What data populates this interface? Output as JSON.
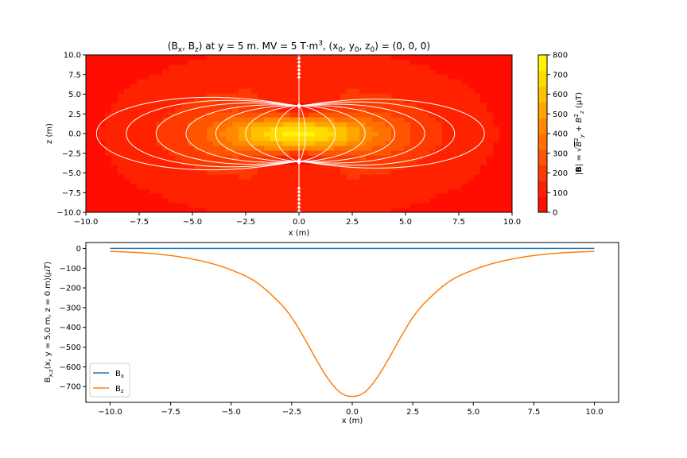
{
  "chart_data": [
    {
      "type": "heatmap",
      "title": "(Bₓ, Bᵤ) at y = 5 m.  MV = 5 T·m³, (x₀, y₀, z₀) = (0, 0, 0)",
      "title_parts": {
        "a": "(B",
        "b": "x",
        "c": ", B",
        "d": "z",
        "e": ") at y = 5 m.  MV = 5 T·m",
        "f": "3",
        "g": ", (x",
        "h": "0",
        "i": ", y",
        "j": "0",
        "k": ", z",
        "l": "0",
        "m": ") = (0, 0, 0)"
      },
      "xlabel": "x (m)",
      "ylabel": "z (m)",
      "xlim": [
        -10,
        10
      ],
      "ylim": [
        -10,
        10
      ],
      "xticks": [
        "−10.0",
        "−7.5",
        "−5.0",
        "−2.5",
        "0.0",
        "2.5",
        "5.0",
        "7.5",
        "10.0"
      ],
      "yticks": [
        "−10.0",
        "−7.5",
        "−5.0",
        "−2.5",
        "0.0",
        "2.5",
        "5.0",
        "7.5",
        "10.0"
      ],
      "colorbar": {
        "label": "|B| = √(Bᵧ² + Bᵤ²)  (μT)",
        "label_parts": {
          "a": "|",
          "b": "B",
          "c": "| = ",
          "d": "B",
          "e": "2",
          "f": "y",
          "g": " + ",
          "h": "B",
          "i": "2",
          "j": "z",
          "k": "  (μT)"
        },
        "ticks": [
          "0",
          "100",
          "200",
          "300",
          "400",
          "500",
          "600",
          "700",
          "800"
        ],
        "range": [
          0,
          800
        ],
        "colors": [
          "#ff0d00",
          "#ff2200",
          "#ff3a00",
          "#ff5500",
          "#ff7000",
          "#ff8a00",
          "#ffa500",
          "#ffc000",
          "#ffdb00",
          "#fff500"
        ]
      },
      "streamline_color": "#ffffff",
      "moment_strength": 750
    },
    {
      "type": "line",
      "xlabel": "x (m)",
      "ylabel": "Bₓ,ᵤ(x, y = 5.0 m, z = 0 m)(μT)",
      "ylabel_parts": {
        "a": "B",
        "b": "x,z",
        "c": "(x, y = 5.0 m, z = 0 m)(",
        "d": "μT",
        "e": ")"
      },
      "xlim": [
        -11,
        11
      ],
      "ylim": [
        -780,
        30
      ],
      "xticks": [
        "−10.0",
        "−7.5",
        "−5.0",
        "−2.5",
        "0.0",
        "2.5",
        "5.0",
        "7.5",
        "10.0"
      ],
      "yticks": [
        "0",
        "−100",
        "−200",
        "−300",
        "−400",
        "−500",
        "−600",
        "−700"
      ],
      "legend_position": "lower-left",
      "series": [
        {
          "name": "Bₓ",
          "name_parts": {
            "a": "B",
            "b": "x"
          },
          "color": "#1f77b4",
          "x": [
            -10,
            -8,
            -6,
            -4,
            -2,
            0,
            2,
            4,
            6,
            8,
            10
          ],
          "y": [
            0,
            0,
            0,
            0,
            0,
            0,
            0,
            0,
            0,
            0,
            0
          ]
        },
        {
          "name": "Bᵤ",
          "name_parts": {
            "a": "B",
            "b": "z"
          },
          "color": "#ff7f0e",
          "x": [
            -10,
            -9,
            -8,
            -7,
            -6,
            -5,
            -4,
            -3,
            -2.5,
            -2,
            -1.5,
            -1,
            -0.5,
            0,
            0.5,
            1,
            1.5,
            2,
            2.5,
            3,
            4,
            5,
            6,
            7,
            8,
            9,
            10
          ],
          "y": [
            -15,
            -20,
            -29,
            -45,
            -70,
            -109,
            -168,
            -275,
            -350,
            -450,
            -560,
            -660,
            -730,
            -750,
            -730,
            -660,
            -560,
            -450,
            -350,
            -275,
            -168,
            -109,
            -70,
            -45,
            -29,
            -20,
            -15
          ]
        }
      ]
    }
  ]
}
